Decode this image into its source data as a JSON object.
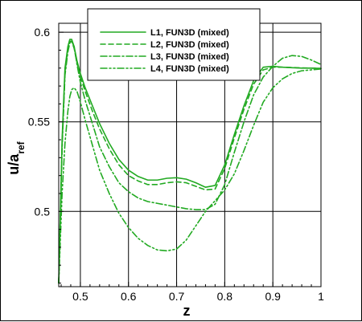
{
  "chart_data": {
    "type": "line",
    "xlabel": "z",
    "ylabel": "u/a",
    "ylabel_sub": "ref",
    "xlim": [
      0.455,
      1.0
    ],
    "ylim": [
      0.458,
      0.605
    ],
    "xticks": [
      0.5,
      0.6,
      0.7,
      0.8,
      0.9,
      1.0
    ],
    "xtick_labels": [
      "0.5",
      "0.6",
      "0.7",
      "0.8",
      "0.9",
      "1"
    ],
    "yticks": [
      0.5,
      0.55,
      0.6
    ],
    "ytick_labels": [
      "0.5",
      "0.55",
      "0.6"
    ],
    "grid": true,
    "legend_placement": "top-center",
    "series": [
      {
        "name": "L1, FUN3D (mixed)",
        "color": "#22aa22",
        "dash": "solid",
        "x": [
          0.455,
          0.462,
          0.468,
          0.474,
          0.478,
          0.482,
          0.487,
          0.493,
          0.5,
          0.51,
          0.525,
          0.54,
          0.56,
          0.58,
          0.6,
          0.62,
          0.64,
          0.66,
          0.68,
          0.7,
          0.72,
          0.74,
          0.76,
          0.78,
          0.8,
          0.82,
          0.84,
          0.86,
          0.88,
          0.9,
          0.92,
          0.94,
          0.96,
          0.98,
          1.0
        ],
        "y": [
          0.46,
          0.54,
          0.58,
          0.592,
          0.596,
          0.596,
          0.592,
          0.584,
          0.577,
          0.569,
          0.559,
          0.549,
          0.538,
          0.529,
          0.523,
          0.5195,
          0.5175,
          0.5175,
          0.5185,
          0.5188,
          0.518,
          0.516,
          0.5135,
          0.5145,
          0.526,
          0.543,
          0.559,
          0.573,
          0.5805,
          0.581,
          0.5805,
          0.5802,
          0.58,
          0.58,
          0.5798
        ]
      },
      {
        "name": "L2, FUN3D (mixed)",
        "color": "#22aa22",
        "dash": "dashed",
        "x": [
          0.455,
          0.462,
          0.468,
          0.474,
          0.478,
          0.482,
          0.487,
          0.493,
          0.5,
          0.51,
          0.525,
          0.54,
          0.56,
          0.58,
          0.6,
          0.62,
          0.64,
          0.66,
          0.68,
          0.7,
          0.72,
          0.74,
          0.76,
          0.78,
          0.8,
          0.82,
          0.84,
          0.86,
          0.88,
          0.9,
          0.92,
          0.94,
          0.96,
          0.98,
          1.0
        ],
        "y": [
          0.46,
          0.537,
          0.578,
          0.591,
          0.595,
          0.595,
          0.591,
          0.583,
          0.575,
          0.567,
          0.556,
          0.546,
          0.535,
          0.526,
          0.52,
          0.517,
          0.515,
          0.515,
          0.516,
          0.5165,
          0.516,
          0.514,
          0.512,
          0.5125,
          0.524,
          0.541,
          0.557,
          0.571,
          0.579,
          0.5805,
          0.5805,
          0.5803,
          0.5801,
          0.58,
          0.5798
        ]
      },
      {
        "name": "L3, FUN3D (mixed)",
        "color": "#22aa22",
        "dash": "dashdot",
        "x": [
          0.455,
          0.462,
          0.468,
          0.474,
          0.478,
          0.482,
          0.487,
          0.493,
          0.5,
          0.51,
          0.525,
          0.54,
          0.56,
          0.58,
          0.6,
          0.62,
          0.64,
          0.66,
          0.68,
          0.7,
          0.72,
          0.74,
          0.76,
          0.78,
          0.8,
          0.82,
          0.84,
          0.86,
          0.88,
          0.9,
          0.92,
          0.94,
          0.96,
          0.98,
          1.0
        ],
        "y": [
          0.46,
          0.535,
          0.576,
          0.589,
          0.594,
          0.595,
          0.592,
          0.582,
          0.572,
          0.562,
          0.549,
          0.536,
          0.525,
          0.516,
          0.511,
          0.5075,
          0.5055,
          0.5045,
          0.5035,
          0.5025,
          0.5015,
          0.501,
          0.501,
          0.504,
          0.515,
          0.533,
          0.55,
          0.565,
          0.575,
          0.581,
          0.5855,
          0.587,
          0.5865,
          0.5845,
          0.582
        ]
      },
      {
        "name": "L4, FUN3D (mixed)",
        "color": "#22aa22",
        "dash": "dashdotdot",
        "x": [
          0.455,
          0.462,
          0.468,
          0.474,
          0.478,
          0.482,
          0.487,
          0.493,
          0.5,
          0.51,
          0.525,
          0.54,
          0.56,
          0.58,
          0.6,
          0.62,
          0.64,
          0.66,
          0.68,
          0.7,
          0.72,
          0.74,
          0.76,
          0.78,
          0.8,
          0.82,
          0.84,
          0.86,
          0.88,
          0.9,
          0.92,
          0.94,
          0.96,
          0.98,
          1.0
        ],
        "y": [
          0.46,
          0.51,
          0.538,
          0.556,
          0.564,
          0.568,
          0.569,
          0.567,
          0.561,
          0.551,
          0.537,
          0.523,
          0.51,
          0.499,
          0.491,
          0.485,
          0.481,
          0.4785,
          0.478,
          0.479,
          0.484,
          0.492,
          0.5,
          0.506,
          0.512,
          0.521,
          0.534,
          0.548,
          0.561,
          0.569,
          0.574,
          0.577,
          0.5785,
          0.579,
          0.5795
        ]
      }
    ]
  }
}
